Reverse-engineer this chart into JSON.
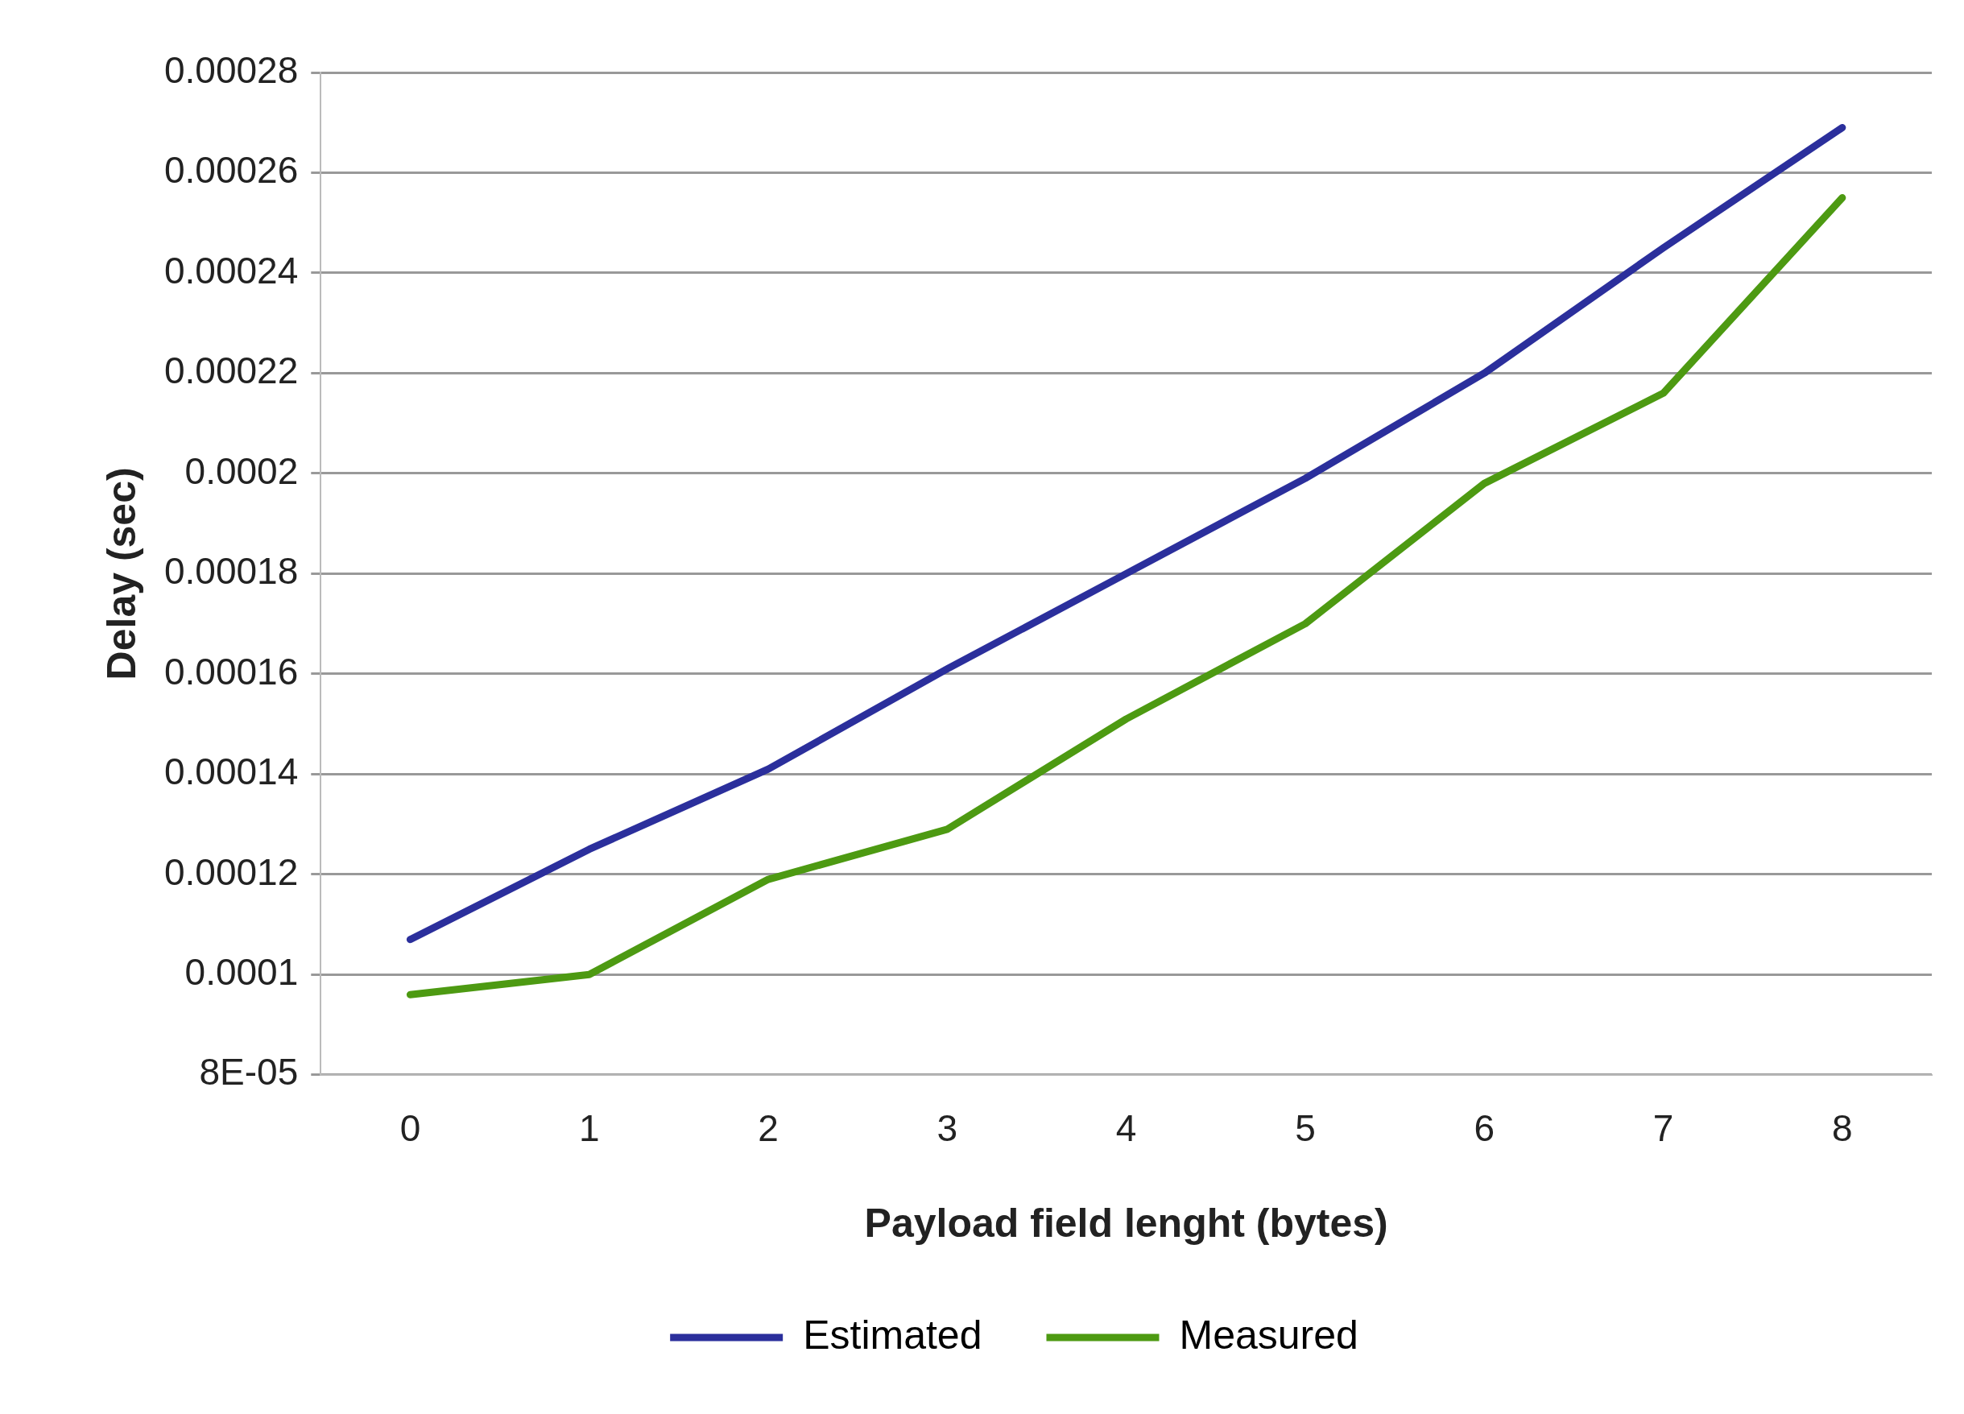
{
  "chart_data": {
    "type": "line",
    "xlabel": "Payload field lenght (bytes)",
    "ylabel": "Delay (sec)",
    "categories": [
      "0",
      "1",
      "2",
      "3",
      "4",
      "5",
      "6",
      "7",
      "8"
    ],
    "series": [
      {
        "name": "Estimated",
        "color": "#2b2f9c",
        "values": [
          0.000107,
          0.000125,
          0.000141,
          0.000161,
          0.00018,
          0.000199,
          0.00022,
          0.000245,
          0.000269
        ]
      },
      {
        "name": "Measured",
        "color": "#4d9a12",
        "values": [
          9.6e-05,
          0.0001,
          0.000119,
          0.000129,
          0.000151,
          0.00017,
          0.000198,
          0.000216,
          0.000255
        ]
      }
    ],
    "ylim": [
      8e-05,
      0.00028
    ],
    "yticks": [
      {
        "value": 8e-05,
        "label": "8E-05"
      },
      0.0001,
      0.00012,
      0.00014,
      0.00016,
      0.00018,
      0.0002,
      0.00022,
      0.00024,
      0.00026,
      0.00028
    ],
    "grid": "y",
    "legend": "bottom",
    "marker": "none",
    "line_style": "solid"
  }
}
